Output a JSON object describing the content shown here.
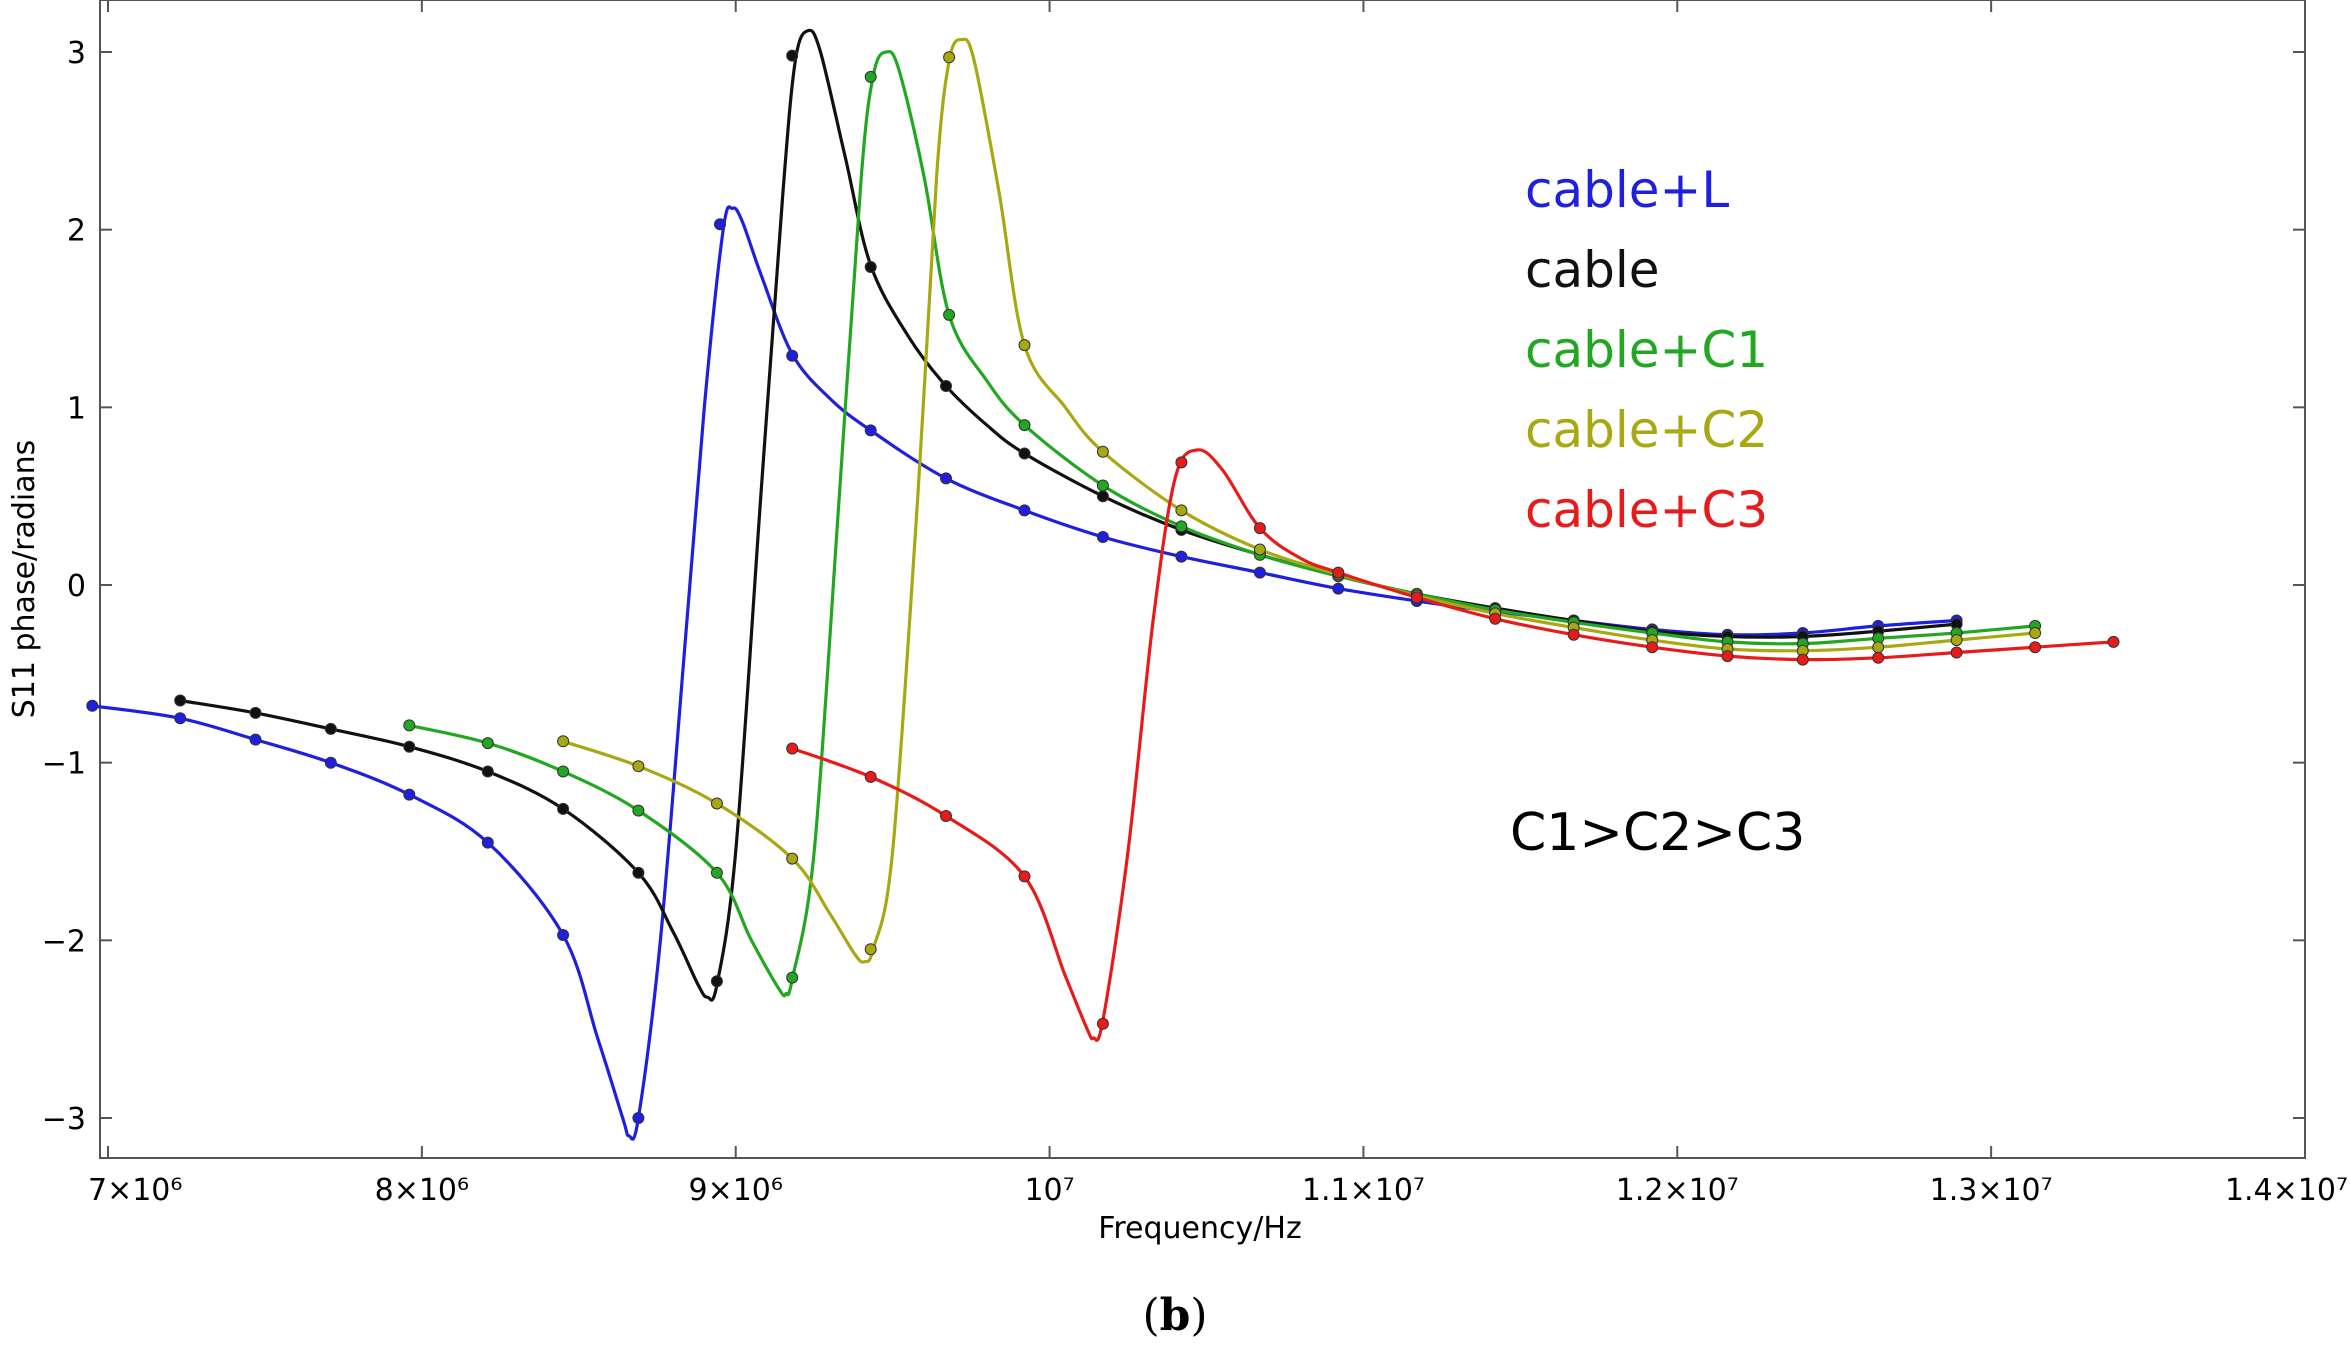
{
  "chart_data": {
    "type": "line",
    "title": "",
    "xlabel": "Frequency/Hz",
    "ylabel": "S11 phase/radians",
    "xlim": [
      6950000,
      14000000
    ],
    "ylim": [
      -3.2,
      3.15
    ],
    "x_ticks": [
      {
        "value": 7000000,
        "label": "7×10⁶"
      },
      {
        "value": 8000000,
        "label": "8×10⁶"
      },
      {
        "value": 9000000,
        "label": "9×10⁶"
      },
      {
        "value": 10000000,
        "label": "10⁷"
      },
      {
        "value": 11000000,
        "label": "1.1×10⁷"
      },
      {
        "value": 12000000,
        "label": "1.2×10⁷"
      },
      {
        "value": 13000000,
        "label": "1.3×10⁷"
      },
      {
        "value": 14000000,
        "label": "1.4×10⁷"
      }
    ],
    "y_ticks": [
      {
        "value": 3,
        "label": "3"
      },
      {
        "value": 2,
        "label": "2"
      },
      {
        "value": 1,
        "label": "1"
      },
      {
        "value": 0,
        "label": "0"
      },
      {
        "value": -1,
        "label": "−1"
      },
      {
        "value": -2,
        "label": "−2"
      },
      {
        "value": -3,
        "label": "−3"
      }
    ],
    "grid": false,
    "legend_position": "top-right",
    "series": [
      {
        "name": "cable+L",
        "color": "#1f1fe0",
        "curve": [
          [
            6950000,
            -0.68
          ],
          [
            7230000,
            -0.75
          ],
          [
            7470000,
            -0.87
          ],
          [
            7710000,
            -1.0
          ],
          [
            7960000,
            -1.18
          ],
          [
            8210000,
            -1.45
          ],
          [
            8450000,
            -1.97
          ],
          [
            8560000,
            -2.55
          ],
          [
            8640000,
            -3.0
          ],
          [
            8660000,
            -3.1
          ],
          [
            8690000,
            -3.0
          ],
          [
            8760000,
            -2.0
          ],
          [
            8840000,
            -0.3
          ],
          [
            8900000,
            1.0
          ],
          [
            8960000,
            2.0
          ],
          [
            8990000,
            2.12
          ],
          [
            9020000,
            2.05
          ],
          [
            9080000,
            1.75
          ],
          [
            9180000,
            1.3
          ],
          [
            9300000,
            1.05
          ],
          [
            9430000,
            0.87
          ],
          [
            9670000,
            0.6
          ],
          [
            9920000,
            0.42
          ],
          [
            10170000,
            0.27
          ],
          [
            10420000,
            0.16
          ],
          [
            10670000,
            0.07
          ],
          [
            10920000,
            -0.02
          ],
          [
            11170000,
            -0.09
          ],
          [
            11420000,
            -0.15
          ],
          [
            11670000,
            -0.2
          ],
          [
            11920000,
            -0.25
          ],
          [
            12160000,
            -0.28
          ],
          [
            12400000,
            -0.27
          ],
          [
            12640000,
            -0.23
          ],
          [
            12890000,
            -0.2
          ]
        ],
        "markers": [
          [
            6950000,
            -0.68
          ],
          [
            7230000,
            -0.75
          ],
          [
            7470000,
            -0.87
          ],
          [
            7710000,
            -1.0
          ],
          [
            7960000,
            -1.18
          ],
          [
            8210000,
            -1.45
          ],
          [
            8450000,
            -1.97
          ],
          [
            8690000,
            -3.0
          ],
          [
            8950000,
            2.03
          ],
          [
            9180000,
            1.29
          ],
          [
            9430000,
            0.87
          ],
          [
            9670000,
            0.6
          ],
          [
            9920000,
            0.42
          ],
          [
            10170000,
            0.27
          ],
          [
            10420000,
            0.16
          ],
          [
            10670000,
            0.07
          ],
          [
            10920000,
            -0.02
          ],
          [
            11170000,
            -0.09
          ],
          [
            11420000,
            -0.15
          ],
          [
            11670000,
            -0.2
          ],
          [
            11920000,
            -0.25
          ],
          [
            12160000,
            -0.28
          ],
          [
            12400000,
            -0.27
          ],
          [
            12640000,
            -0.23
          ],
          [
            12890000,
            -0.2
          ]
        ]
      },
      {
        "name": "cable",
        "color": "#111111",
        "curve": [
          [
            7230000,
            -0.65
          ],
          [
            7470000,
            -0.72
          ],
          [
            7710000,
            -0.81
          ],
          [
            7960000,
            -0.91
          ],
          [
            8210000,
            -1.05
          ],
          [
            8450000,
            -1.26
          ],
          [
            8690000,
            -1.62
          ],
          [
            8800000,
            -1.95
          ],
          [
            8880000,
            -2.25
          ],
          [
            8910000,
            -2.32
          ],
          [
            8940000,
            -2.25
          ],
          [
            9000000,
            -1.5
          ],
          [
            9080000,
            0.5
          ],
          [
            9150000,
            2.2
          ],
          [
            9190000,
            2.95
          ],
          [
            9230000,
            3.12
          ],
          [
            9270000,
            3.0
          ],
          [
            9350000,
            2.4
          ],
          [
            9430000,
            1.8
          ],
          [
            9550000,
            1.4
          ],
          [
            9670000,
            1.12
          ],
          [
            9800000,
            0.9
          ],
          [
            9920000,
            0.74
          ],
          [
            10170000,
            0.5
          ],
          [
            10420000,
            0.31
          ],
          [
            10670000,
            0.17
          ],
          [
            10920000,
            0.05
          ],
          [
            11170000,
            -0.05
          ],
          [
            11420000,
            -0.13
          ],
          [
            11670000,
            -0.2
          ],
          [
            11920000,
            -0.26
          ],
          [
            12160000,
            -0.29
          ],
          [
            12400000,
            -0.29
          ],
          [
            12640000,
            -0.26
          ],
          [
            12890000,
            -0.22
          ]
        ],
        "markers": [
          [
            7230000,
            -0.65
          ],
          [
            7470000,
            -0.72
          ],
          [
            7710000,
            -0.81
          ],
          [
            7960000,
            -0.91
          ],
          [
            8210000,
            -1.05
          ],
          [
            8450000,
            -1.26
          ],
          [
            8690000,
            -1.62
          ],
          [
            8940000,
            -2.23
          ],
          [
            9180000,
            2.98
          ],
          [
            9430000,
            1.79
          ],
          [
            9670000,
            1.12
          ],
          [
            9920000,
            0.74
          ],
          [
            10170000,
            0.5
          ],
          [
            10420000,
            0.31
          ],
          [
            10670000,
            0.17
          ],
          [
            10920000,
            0.05
          ],
          [
            11170000,
            -0.05
          ],
          [
            11420000,
            -0.13
          ],
          [
            11670000,
            -0.2
          ],
          [
            11920000,
            -0.26
          ],
          [
            12160000,
            -0.29
          ],
          [
            12400000,
            -0.29
          ],
          [
            12640000,
            -0.26
          ],
          [
            12890000,
            -0.22
          ]
        ]
      },
      {
        "name": "cable+C1",
        "color": "#22a722",
        "curve": [
          [
            7960000,
            -0.79
          ],
          [
            8210000,
            -0.89
          ],
          [
            8450000,
            -1.05
          ],
          [
            8690000,
            -1.27
          ],
          [
            8940000,
            -1.62
          ],
          [
            9050000,
            -2.0
          ],
          [
            9140000,
            -2.28
          ],
          [
            9160000,
            -2.3
          ],
          [
            9180000,
            -2.22
          ],
          [
            9250000,
            -1.5
          ],
          [
            9330000,
            0.5
          ],
          [
            9400000,
            2.3
          ],
          [
            9440000,
            2.88
          ],
          [
            9480000,
            3.0
          ],
          [
            9520000,
            2.9
          ],
          [
            9600000,
            2.3
          ],
          [
            9680000,
            1.52
          ],
          [
            9800000,
            1.15
          ],
          [
            9920000,
            0.9
          ],
          [
            10170000,
            0.56
          ],
          [
            10420000,
            0.33
          ],
          [
            10670000,
            0.17
          ],
          [
            10920000,
            0.05
          ],
          [
            11170000,
            -0.05
          ],
          [
            11420000,
            -0.14
          ],
          [
            11670000,
            -0.21
          ],
          [
            11920000,
            -0.27
          ],
          [
            12160000,
            -0.32
          ],
          [
            12400000,
            -0.33
          ],
          [
            12640000,
            -0.3
          ],
          [
            12890000,
            -0.27
          ],
          [
            13140000,
            -0.23
          ]
        ],
        "markers": [
          [
            7960000,
            -0.79
          ],
          [
            8210000,
            -0.89
          ],
          [
            8450000,
            -1.05
          ],
          [
            8690000,
            -1.27
          ],
          [
            8940000,
            -1.62
          ],
          [
            9180000,
            -2.21
          ],
          [
            9430000,
            2.86
          ],
          [
            9680000,
            1.52
          ],
          [
            9920000,
            0.9
          ],
          [
            10170000,
            0.56
          ],
          [
            10420000,
            0.33
          ],
          [
            10670000,
            0.17
          ],
          [
            10920000,
            0.05
          ],
          [
            11170000,
            -0.05
          ],
          [
            11420000,
            -0.14
          ],
          [
            11670000,
            -0.21
          ],
          [
            11920000,
            -0.27
          ],
          [
            12160000,
            -0.32
          ],
          [
            12400000,
            -0.33
          ],
          [
            12640000,
            -0.3
          ],
          [
            12890000,
            -0.27
          ],
          [
            13140000,
            -0.23
          ]
        ]
      },
      {
        "name": "cable+C2",
        "color": "#a8a812",
        "curve": [
          [
            8450000,
            -0.88
          ],
          [
            8690000,
            -1.02
          ],
          [
            8940000,
            -1.23
          ],
          [
            9180000,
            -1.54
          ],
          [
            9300000,
            -1.85
          ],
          [
            9380000,
            -2.08
          ],
          [
            9410000,
            -2.12
          ],
          [
            9440000,
            -2.04
          ],
          [
            9500000,
            -1.5
          ],
          [
            9580000,
            0.5
          ],
          [
            9640000,
            2.3
          ],
          [
            9680000,
            2.95
          ],
          [
            9720000,
            3.07
          ],
          [
            9760000,
            2.95
          ],
          [
            9840000,
            2.2
          ],
          [
            9920000,
            1.35
          ],
          [
            10050000,
            1.0
          ],
          [
            10170000,
            0.75
          ],
          [
            10420000,
            0.42
          ],
          [
            10670000,
            0.2
          ],
          [
            10920000,
            0.06
          ],
          [
            11170000,
            -0.06
          ],
          [
            11420000,
            -0.16
          ],
          [
            11670000,
            -0.24
          ],
          [
            11920000,
            -0.31
          ],
          [
            12160000,
            -0.36
          ],
          [
            12400000,
            -0.37
          ],
          [
            12640000,
            -0.35
          ],
          [
            12890000,
            -0.31
          ],
          [
            13140000,
            -0.27
          ]
        ],
        "markers": [
          [
            8450000,
            -0.88
          ],
          [
            8690000,
            -1.02
          ],
          [
            8940000,
            -1.23
          ],
          [
            9180000,
            -1.54
          ],
          [
            9430000,
            -2.05
          ],
          [
            9680000,
            2.97
          ],
          [
            9920000,
            1.35
          ],
          [
            10170000,
            0.75
          ],
          [
            10420000,
            0.42
          ],
          [
            10670000,
            0.2
          ],
          [
            10920000,
            0.06
          ],
          [
            11170000,
            -0.06
          ],
          [
            11420000,
            -0.16
          ],
          [
            11670000,
            -0.24
          ],
          [
            11920000,
            -0.31
          ],
          [
            12160000,
            -0.36
          ],
          [
            12400000,
            -0.37
          ],
          [
            12640000,
            -0.35
          ],
          [
            12890000,
            -0.31
          ],
          [
            13140000,
            -0.27
          ]
        ]
      },
      {
        "name": "cable+C3",
        "color": "#e81b1b",
        "curve": [
          [
            9180000,
            -0.92
          ],
          [
            9430000,
            -1.08
          ],
          [
            9670000,
            -1.3
          ],
          [
            9920000,
            -1.64
          ],
          [
            10050000,
            -2.2
          ],
          [
            10120000,
            -2.5
          ],
          [
            10140000,
            -2.55
          ],
          [
            10170000,
            -2.45
          ],
          [
            10250000,
            -1.5
          ],
          [
            10330000,
            -0.2
          ],
          [
            10400000,
            0.6
          ],
          [
            10470000,
            0.76
          ],
          [
            10550000,
            0.65
          ],
          [
            10670000,
            0.32
          ],
          [
            10800000,
            0.15
          ],
          [
            10920000,
            0.07
          ],
          [
            11170000,
            -0.07
          ],
          [
            11420000,
            -0.19
          ],
          [
            11670000,
            -0.28
          ],
          [
            11920000,
            -0.35
          ],
          [
            12160000,
            -0.4
          ],
          [
            12400000,
            -0.42
          ],
          [
            12640000,
            -0.41
          ],
          [
            12890000,
            -0.38
          ],
          [
            13140000,
            -0.35
          ],
          [
            13390000,
            -0.32
          ]
        ],
        "markers": [
          [
            9180000,
            -0.92
          ],
          [
            9430000,
            -1.08
          ],
          [
            9670000,
            -1.3
          ],
          [
            9920000,
            -1.64
          ],
          [
            10170000,
            -2.47
          ],
          [
            10420000,
            0.69
          ],
          [
            10670000,
            0.32
          ],
          [
            10920000,
            0.07
          ],
          [
            11170000,
            -0.07
          ],
          [
            11420000,
            -0.19
          ],
          [
            11670000,
            -0.28
          ],
          [
            11920000,
            -0.35
          ],
          [
            12160000,
            -0.4
          ],
          [
            12400000,
            -0.42
          ],
          [
            12640000,
            -0.41
          ],
          [
            12890000,
            -0.38
          ],
          [
            13140000,
            -0.35
          ],
          [
            13390000,
            -0.32
          ]
        ]
      }
    ],
    "annotation": "C1>C2>C3",
    "panel_label": "b"
  }
}
